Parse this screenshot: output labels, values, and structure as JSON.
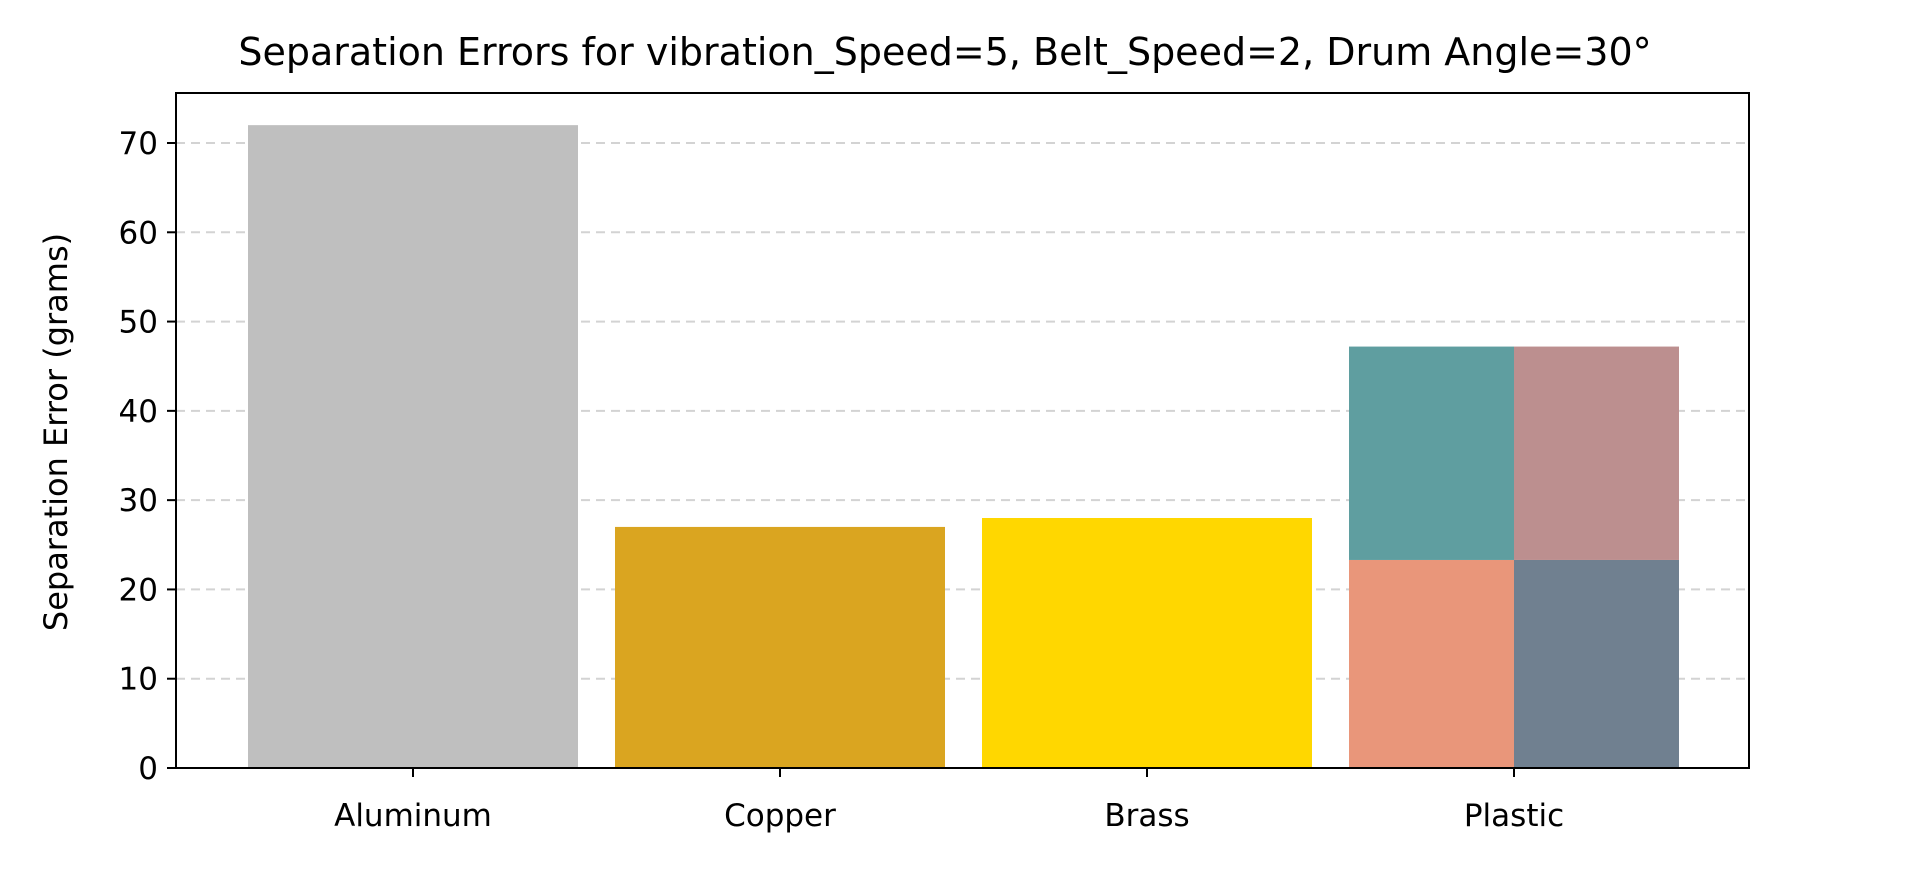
{
  "chart_data": {
    "type": "bar",
    "title": "Separation Errors for vibration_Speed=5, Belt_Speed=2, Drum Angle=30°",
    "xlabel": "",
    "ylabel": "Separation Error (grams)",
    "ylim": [
      0,
      75.6
    ],
    "yticks": [
      0,
      10,
      20,
      30,
      40,
      50,
      60,
      70
    ],
    "grid": "y-dashed",
    "categories": [
      "Aluminum",
      "Copper",
      "Brass",
      "Plastic"
    ],
    "values": [
      72,
      27,
      28,
      47.2
    ],
    "bar_colors": [
      "#bfbfbf",
      "#daa520",
      "#ffd700",
      null
    ],
    "stacked_segments": {
      "category": "Plastic",
      "quadrants": [
        {
          "position": "bottom-left",
          "ymin": 0,
          "ymax": 23.3,
          "color": "#e9967a"
        },
        {
          "position": "bottom-right",
          "ymin": 0,
          "ymax": 23.3,
          "color": "#708090"
        },
        {
          "position": "top-left",
          "ymin": 23.3,
          "ymax": 47.2,
          "color": "#5f9ea0"
        },
        {
          "position": "top-right",
          "ymin": 23.3,
          "ymax": 47.2,
          "color": "#bc8f8f"
        }
      ]
    }
  }
}
